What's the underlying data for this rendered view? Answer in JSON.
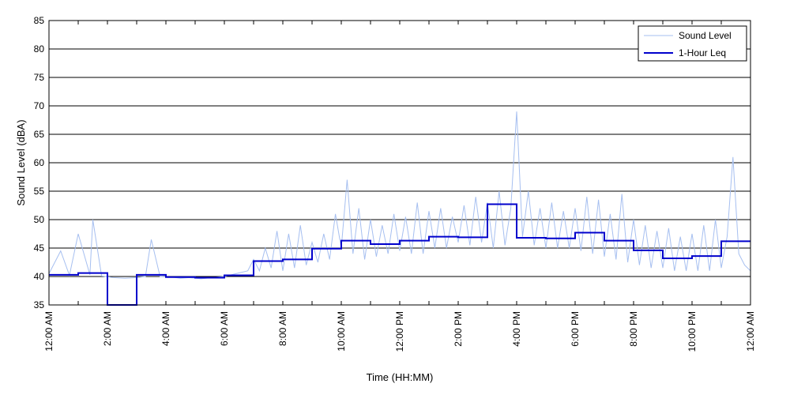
{
  "chart_data": {
    "type": "line",
    "xlabel": "Time (HH:MM)",
    "ylabel": "Sound Level (dBA)",
    "ylim": [
      35,
      85
    ],
    "yticks": [
      35,
      40,
      45,
      50,
      55,
      60,
      65,
      70,
      75,
      80,
      85
    ],
    "xlim_hours": [
      0,
      24
    ],
    "xticks": [
      {
        "hour": 0,
        "label": "12:00 AM"
      },
      {
        "hour": 2,
        "label": "2:00 AM"
      },
      {
        "hour": 4,
        "label": "4:00 AM"
      },
      {
        "hour": 6,
        "label": "6:00 AM"
      },
      {
        "hour": 8,
        "label": "8:00 AM"
      },
      {
        "hour": 10,
        "label": "10:00 AM"
      },
      {
        "hour": 12,
        "label": "12:00 PM"
      },
      {
        "hour": 14,
        "label": "2:00 PM"
      },
      {
        "hour": 16,
        "label": "4:00 PM"
      },
      {
        "hour": 18,
        "label": "6:00 PM"
      },
      {
        "hour": 20,
        "label": "8:00 PM"
      },
      {
        "hour": 22,
        "label": "10:00 PM"
      },
      {
        "hour": 24,
        "label": "12:00 AM"
      }
    ],
    "grid": "horizontal",
    "legend_position": "top-right",
    "series": [
      {
        "name": "Sound Level",
        "color": "#a6bff0",
        "x_hours": [
          0.0,
          0.4,
          0.7,
          1.0,
          1.4,
          1.5,
          1.8,
          2.2,
          2.6,
          3.0,
          3.3,
          3.5,
          3.8,
          4.2,
          4.5,
          4.8,
          5.2,
          5.6,
          6.0,
          6.4,
          6.8,
          7.0,
          7.2,
          7.4,
          7.6,
          7.8,
          8.0,
          8.2,
          8.4,
          8.6,
          8.8,
          9.0,
          9.2,
          9.4,
          9.6,
          9.8,
          10.0,
          10.2,
          10.4,
          10.6,
          10.8,
          11.0,
          11.2,
          11.4,
          11.6,
          11.8,
          12.0,
          12.2,
          12.4,
          12.6,
          12.8,
          13.0,
          13.2,
          13.4,
          13.6,
          13.8,
          14.0,
          14.2,
          14.4,
          14.6,
          14.8,
          15.0,
          15.2,
          15.4,
          15.6,
          15.8,
          16.0,
          16.2,
          16.4,
          16.6,
          16.8,
          17.0,
          17.2,
          17.4,
          17.6,
          17.8,
          18.0,
          18.2,
          18.4,
          18.6,
          18.8,
          19.0,
          19.2,
          19.4,
          19.6,
          19.8,
          20.0,
          20.2,
          20.4,
          20.6,
          20.8,
          21.0,
          21.2,
          21.4,
          21.6,
          21.8,
          22.0,
          22.2,
          22.4,
          22.6,
          22.8,
          23.0,
          23.2,
          23.4,
          23.6,
          23.8,
          24.0
        ],
        "values": [
          40.5,
          44.5,
          40.2,
          47.5,
          40.3,
          50.0,
          40.1,
          39.8,
          39.7,
          39.8,
          40.0,
          46.5,
          40.0,
          39.9,
          39.7,
          39.8,
          39.6,
          39.8,
          40.0,
          40.5,
          41.0,
          43.0,
          41.0,
          45.0,
          41.5,
          48.0,
          41.0,
          47.5,
          41.5,
          49.0,
          42.0,
          46.0,
          42.5,
          47.5,
          43.0,
          51.0,
          45.0,
          57.0,
          44.0,
          52.0,
          43.0,
          50.0,
          43.5,
          49.0,
          44.0,
          51.0,
          44.5,
          50.5,
          44.0,
          53.0,
          44.0,
          51.5,
          45.0,
          52.0,
          45.0,
          50.5,
          46.0,
          52.5,
          45.5,
          54.0,
          46.0,
          53.0,
          45.0,
          55.0,
          45.5,
          52.0,
          69.0,
          47.0,
          55.0,
          45.5,
          52.0,
          45.0,
          53.0,
          45.0,
          51.5,
          45.0,
          52.0,
          44.5,
          54.0,
          44.0,
          53.5,
          43.5,
          51.0,
          43.0,
          54.5,
          42.5,
          50.0,
          42.0,
          49.0,
          41.5,
          48.0,
          41.5,
          48.5,
          41.0,
          47.0,
          41.0,
          47.5,
          41.0,
          49.0,
          41.0,
          50.0,
          41.5,
          47.0,
          61.0,
          44.0,
          42.0,
          41.0
        ]
      },
      {
        "name": "1-Hour Leq",
        "color": "#0000cc",
        "type": "step",
        "hours": [
          0,
          1,
          2,
          3,
          4,
          5,
          6,
          7,
          8,
          9,
          10,
          11,
          12,
          13,
          14,
          15,
          16,
          17,
          18,
          19,
          20,
          21,
          22,
          23
        ],
        "values": [
          40.3,
          40.6,
          33.0,
          40.3,
          39.9,
          39.8,
          40.2,
          42.7,
          43.0,
          44.9,
          46.3,
          45.7,
          46.3,
          47.0,
          46.9,
          52.7,
          46.8,
          46.7,
          47.7,
          46.3,
          44.6,
          43.2,
          43.6,
          46.2
        ]
      }
    ]
  }
}
